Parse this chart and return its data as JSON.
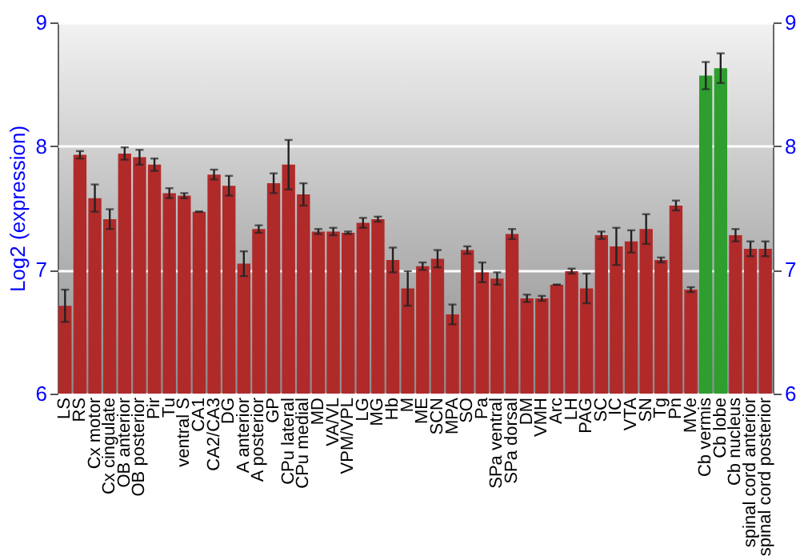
{
  "chart_data": {
    "type": "bar",
    "ylabel": "Log2 (expression)",
    "categories": [
      "LS",
      "RS",
      "Cx motor",
      "Cx cingulate",
      "OB anterior",
      "OB posterior",
      "Pir",
      "Tu",
      "ventral S",
      "CA1",
      "CA2/CA3",
      "DG",
      "A anterior",
      "A posterior",
      "GP",
      "CPu lateral",
      "CPu medial",
      "MD",
      "VA/VL",
      "VPM/VPL",
      "LG",
      "MG",
      "Hb",
      "M",
      "ME",
      "SCN",
      "MPA",
      "SO",
      "Pa",
      "SPa ventral",
      "SPa dorsal",
      "DM",
      "VMH",
      "Arc",
      "LH",
      "PAG",
      "SC",
      "IC",
      "VTA",
      "SN",
      "Tg",
      "Pn",
      "MVe",
      "Cb vermis",
      "Cb lobe",
      "Cb nucleus",
      "spinal cord anterior",
      "spinal cord posterior"
    ],
    "values": [
      6.71,
      7.93,
      7.58,
      7.41,
      7.94,
      7.91,
      7.85,
      7.62,
      7.6,
      7.47,
      7.77,
      7.68,
      7.05,
      7.33,
      7.7,
      7.85,
      7.61,
      7.31,
      7.31,
      7.3,
      7.38,
      7.41,
      7.08,
      6.85,
      7.03,
      7.09,
      6.64,
      7.16,
      6.98,
      6.93,
      7.29,
      6.77,
      6.77,
      6.88,
      6.99,
      6.85,
      7.28,
      7.19,
      7.23,
      7.33,
      7.08,
      7.52,
      6.84,
      8.57,
      8.63,
      7.28,
      7.17,
      7.17
    ],
    "errors": [
      0.13,
      0.03,
      0.11,
      0.08,
      0.05,
      0.06,
      0.05,
      0.04,
      0.02,
      0,
      0.04,
      0.08,
      0.1,
      0.03,
      0.08,
      0.2,
      0.09,
      0.02,
      0.03,
      0.01,
      0.04,
      0.02,
      0.1,
      0.14,
      0.03,
      0.07,
      0.08,
      0.03,
      0.08,
      0.05,
      0.04,
      0.03,
      0.02,
      0,
      0.02,
      0.12,
      0.03,
      0.15,
      0.09,
      0.12,
      0.02,
      0.04,
      0.02,
      0.11,
      0.12,
      0.05,
      0.06,
      0.06
    ],
    "colors": [
      "#b02a2a",
      "#b02a2a",
      "#b02a2a",
      "#b02a2a",
      "#b02a2a",
      "#b02a2a",
      "#b02a2a",
      "#b02a2a",
      "#b02a2a",
      "#b02a2a",
      "#b02a2a",
      "#b02a2a",
      "#b02a2a",
      "#b02a2a",
      "#b02a2a",
      "#b02a2a",
      "#b02a2a",
      "#b02a2a",
      "#b02a2a",
      "#b02a2a",
      "#b02a2a",
      "#b02a2a",
      "#b02a2a",
      "#b02a2a",
      "#b02a2a",
      "#b02a2a",
      "#b02a2a",
      "#b02a2a",
      "#b02a2a",
      "#b02a2a",
      "#b02a2a",
      "#b02a2a",
      "#b02a2a",
      "#b02a2a",
      "#b02a2a",
      "#b02a2a",
      "#b02a2a",
      "#b02a2a",
      "#b02a2a",
      "#b02a2a",
      "#b02a2a",
      "#b02a2a",
      "#b02a2a",
      "#2e9e2e",
      "#2e9e2e",
      "#b02a2a",
      "#b02a2a",
      "#b02a2a"
    ],
    "ylim": [
      6,
      9
    ],
    "yticks": [
      6,
      7,
      8,
      9
    ],
    "y2lim": [
      6,
      9
    ],
    "y2ticks": [
      6,
      7,
      8,
      9
    ],
    "grid": "y"
  }
}
